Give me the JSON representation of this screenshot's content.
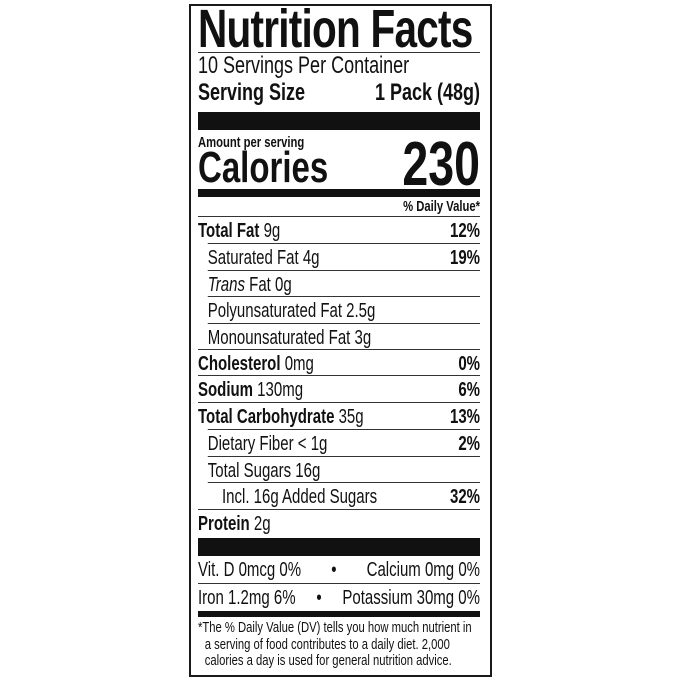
{
  "label": {
    "title": "Nutrition Facts",
    "servings_per_container": "10 Servings Per Container",
    "serving_size_label": "Serving Size",
    "serving_size_value": "1 Pack (48g)",
    "amount_per_serving": "Amount per serving",
    "calories_label": "Calories",
    "calories_value": "230",
    "dv_header": "% Daily Value*",
    "nutrients": [
      {
        "name": "Total Fat",
        "amount": "9g",
        "dv": "12%"
      },
      {
        "name": "Saturated Fat",
        "amount": "4g",
        "dv": "19%"
      },
      {
        "name_italic": "Trans",
        "name": "Fat",
        "amount": "0g",
        "dv": ""
      },
      {
        "name": "Polyunsaturated Fat",
        "amount": "2.5g",
        "dv": ""
      },
      {
        "name": "Monounsaturated Fat",
        "amount": "3g",
        "dv": ""
      },
      {
        "name": "Cholesterol",
        "amount": "0mg",
        "dv": "0%"
      },
      {
        "name": "Sodium",
        "amount": "130mg",
        "dv": "6%"
      },
      {
        "name": "Total Carbohydrate",
        "amount": "35g",
        "dv": "13%"
      },
      {
        "name": "Dietary Fiber",
        "amount": "< 1g",
        "dv": "2%"
      },
      {
        "name": "Total Sugars",
        "amount": "16g",
        "dv": ""
      },
      {
        "name": "Incl. 16g Added Sugars",
        "amount": "",
        "dv": "32%"
      },
      {
        "name": "Protein",
        "amount": "2g",
        "dv": ""
      }
    ],
    "vitamins": [
      {
        "left": "Vit. D 0mcg 0%",
        "sep": "•",
        "right": "Calcium 0mg 0%"
      },
      {
        "left": "Iron 1.2mg 6%",
        "sep": "•",
        "right": "Potassium 30mg 0%"
      }
    ],
    "footnote": "*The % Daily Value (DV) tells you how much nutrient in a serving of food contributes to a daily diet. 2,000 calories a day is used for general nutrition advice."
  }
}
